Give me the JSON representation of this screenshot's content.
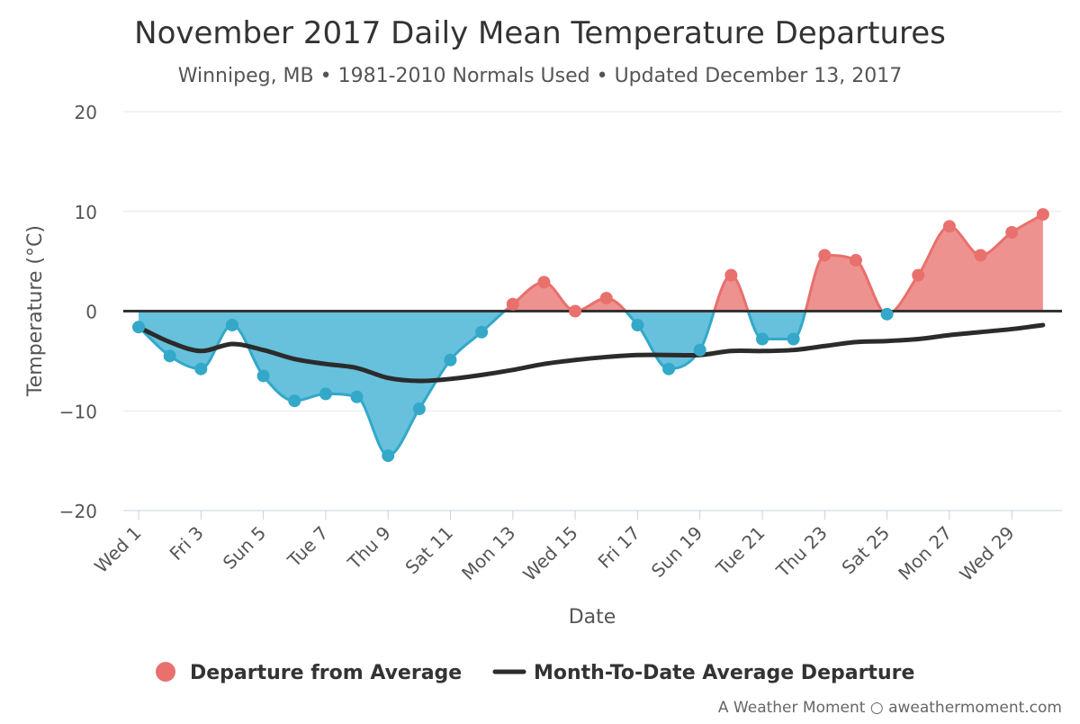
{
  "chart_data": {
    "type": "area",
    "title": "November 2017 Daily Mean Temperature Departures",
    "subtitle": "Winnipeg, MB • 1981-2010 Normals Used • Updated December 13, 2017",
    "xlabel": "Date",
    "ylabel": "Temperature (°C)",
    "ylim": [
      -20,
      20
    ],
    "yticks": [
      -20,
      -10,
      0,
      10,
      20
    ],
    "ytick_labels": [
      "−20",
      "−10",
      "0",
      "10",
      "20"
    ],
    "x": [
      1,
      2,
      3,
      4,
      5,
      6,
      7,
      8,
      9,
      10,
      11,
      12,
      13,
      14,
      15,
      16,
      17,
      18,
      19,
      20,
      21,
      22,
      23,
      24,
      25,
      26,
      27,
      28,
      29,
      30
    ],
    "xtick_days": [
      1,
      3,
      5,
      7,
      9,
      11,
      13,
      15,
      17,
      19,
      21,
      23,
      25,
      27,
      29
    ],
    "xtick_labels": [
      "Wed 1",
      "Fri 3",
      "Sun 5",
      "Tue 7",
      "Thu 9",
      "Sat 11",
      "Mon 13",
      "Wed 15",
      "Fri 17",
      "Sun 19",
      "Tue 21",
      "Thu 23",
      "Sat 25",
      "Mon 27",
      "Wed 29"
    ],
    "series": [
      {
        "name": "Departure from Average",
        "values": [
          -1.6,
          -4.5,
          -5.8,
          -1.4,
          -6.5,
          -9.0,
          -8.3,
          -8.6,
          -14.5,
          -9.8,
          -4.9,
          -2.1,
          0.7,
          2.9,
          0.0,
          1.3,
          -1.4,
          -5.8,
          -3.9,
          3.6,
          -2.8,
          -2.8,
          5.6,
          5.1,
          -0.3,
          3.6,
          8.5,
          5.6,
          7.9,
          9.7
        ],
        "color_positive": "#e8706d",
        "color_negative": "#33a8c9",
        "fill_positive": "#ee928f",
        "fill_negative": "#67c0dc"
      },
      {
        "name": "Month-To-Date Average Departure",
        "values": [
          -1.6,
          -3.1,
          -4.0,
          -3.3,
          -3.9,
          -4.8,
          -5.3,
          -5.7,
          -6.7,
          -7.0,
          -6.8,
          -6.4,
          -5.9,
          -5.3,
          -4.9,
          -4.6,
          -4.4,
          -4.4,
          -4.4,
          -4.0,
          -4.0,
          -3.9,
          -3.5,
          -3.1,
          -3.0,
          -2.8,
          -2.4,
          -2.1,
          -1.8,
          -1.4
        ],
        "color": "#2b2b2b"
      }
    ],
    "grid": true,
    "legend_position": "bottom-center"
  },
  "credit": "A Weather Moment ○ aweathermoment.com"
}
